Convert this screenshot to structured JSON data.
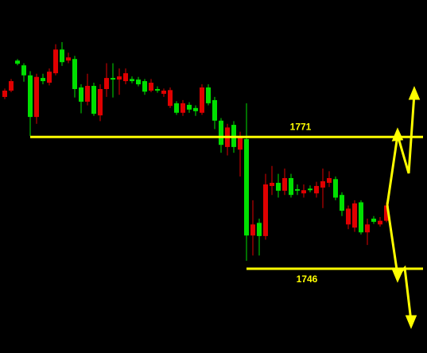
{
  "chart_data": {
    "type": "candlestick",
    "open": [
      1779.8,
      1781.6,
      1784.9,
      1782.7,
      1774.8,
      1782.4,
      1781.6,
      1783.4,
      1787.6,
      1785.2,
      1786.1,
      1780.1,
      1777.7,
      1780.7,
      1775.4,
      1780.1,
      1782.2,
      1781.9,
      1782.5,
      1783.1,
      1781.6,
      1781,
      1779.6,
      1781.3,
      1779.8,
      1779.8,
      1779.9,
      1775.6,
      1777.4,
      1776.2,
      1775.9,
      1780.4,
      1777.4,
      1774.1,
      1769.5,
      1772.8,
      1769.1,
      1771,
      1752.3,
      1754.4,
      1752.2,
      1762,
      1762.3,
      1760.8,
      1763.2,
      1760,
      1760.8,
      1760.9,
      1760.9,
      1761.7,
      1762.6,
      1763.2,
      1759.5,
      1757,
      1757.4,
      1758.4,
      1752.9,
      1754.4,
      1754.9,
      1755.1,
      1758
    ],
    "high": [
      1780.2,
      1782,
      1785.8,
      1785,
      1783.5,
      1783,
      1783,
      1784,
      1788.6,
      1789,
      1787,
      1786.4,
      1781,
      1783,
      1781.3,
      1781,
      1785,
      1785,
      1784,
      1784,
      1782.5,
      1782.4,
      1782,
      1782,
      1780.6,
      1780.2,
      1780.4,
      1777.8,
      1778,
      1777.6,
      1777,
      1781,
      1781,
      1778.6,
      1774.6,
      1773.5,
      1774,
      1772,
      1777.4,
      1759,
      1755.5,
      1764,
      1765.5,
      1764,
      1765,
      1764,
      1762,
      1762,
      1761.8,
      1762.5,
      1765,
      1764.5,
      1763.5,
      1760.5,
      1758,
      1759,
      1759,
      1755.5,
      1756,
      1755.8,
      1758.6
    ],
    "low": [
      1778.2,
      1779.5,
      1784.6,
      1781.5,
      1771.2,
      1773.5,
      1781,
      1780.8,
      1782.7,
      1784.5,
      1785,
      1778.5,
      1775.5,
      1777,
      1775,
      1774,
      1778.6,
      1778.5,
      1779,
      1781,
      1781.2,
      1780.6,
      1779,
      1779.5,
      1779.4,
      1778.6,
      1776.5,
      1775.2,
      1775,
      1775.6,
      1775,
      1775.2,
      1777,
      1772.5,
      1768,
      1767.5,
      1768,
      1763.5,
      1747.5,
      1748.5,
      1748.5,
      1751.5,
      1760,
      1759.5,
      1760,
      1759.5,
      1760,
      1759.5,
      1760.5,
      1759.5,
      1757.5,
      1761.5,
      1759,
      1756,
      1753.5,
      1753,
      1752.5,
      1750.5,
      1754.5,
      1754,
      1754.8
    ],
    "close": [
      1778.6,
      1779.8,
      1785.5,
      1784.6,
      1782.7,
      1774.8,
      1782.2,
      1781.3,
      1783.1,
      1787.6,
      1785.5,
      1785.8,
      1780.4,
      1777.7,
      1780.7,
      1775.1,
      1780.1,
      1782.2,
      1781.9,
      1781.6,
      1782,
      1781.9,
      1781.6,
      1779.8,
      1780.1,
      1779.2,
      1776.9,
      1777.4,
      1775.6,
      1777.1,
      1776.5,
      1775.6,
      1780.4,
      1778,
      1774.1,
      1769.1,
      1773.3,
      1768.6,
      1770.6,
      1752.3,
      1754.7,
      1752.2,
      1761.7,
      1762.3,
      1760.8,
      1763.2,
      1761.1,
      1760.3,
      1761.2,
      1760.3,
      1761.4,
      1762.3,
      1763,
      1760,
      1754.4,
      1753.8,
      1758.6,
      1752.9,
      1755.5,
      1754.4,
      1755.1
    ],
    "up_color": "#00e000",
    "down_color": "#e00000",
    "ylim": [
      1730,
      1797
    ],
    "levels": [
      1771,
      1746
    ],
    "level_color": "#ffff00"
  }
}
